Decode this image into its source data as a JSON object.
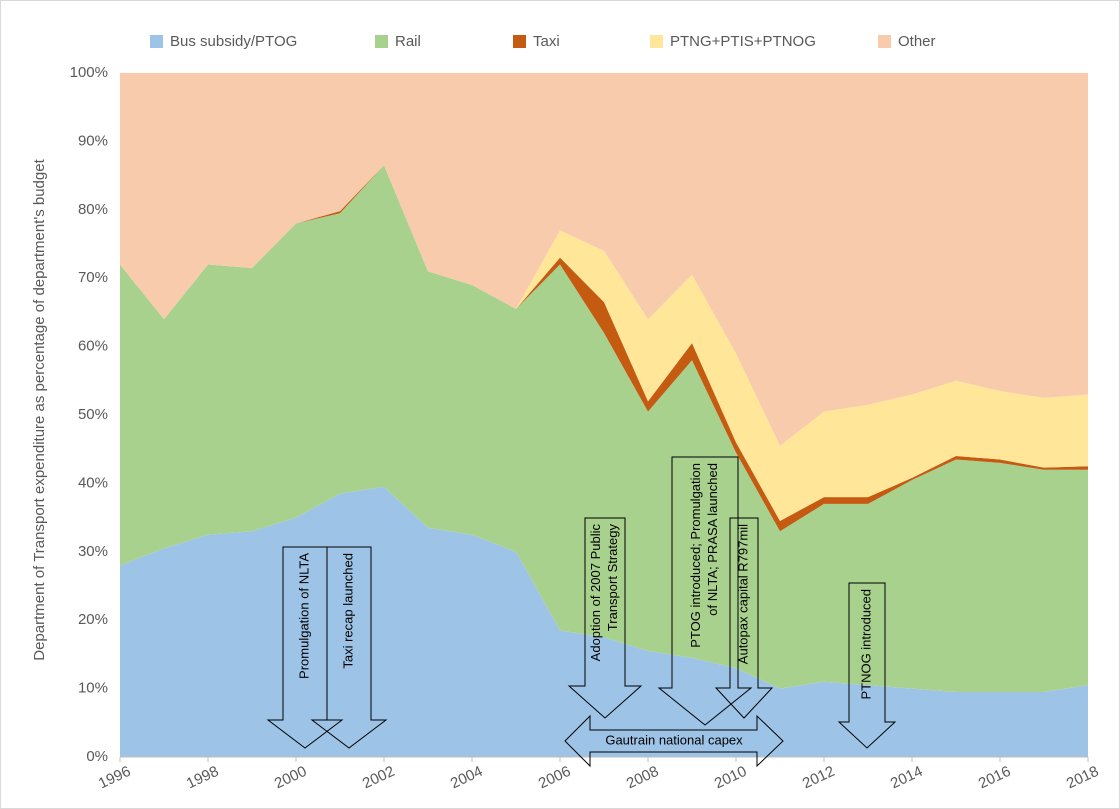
{
  "chart_data": {
    "type": "stacked_area_percent",
    "ylabel": "Department of Transport expenditure as percentage of department's budget",
    "x": [
      1996,
      1997,
      1998,
      1999,
      2000,
      2001,
      2002,
      2003,
      2004,
      2005,
      2006,
      2007,
      2008,
      2009,
      2010,
      2011,
      2012,
      2013,
      2014,
      2015,
      2016,
      2017,
      2018
    ],
    "xlim": [
      1996,
      2018
    ],
    "xticks": [
      1996,
      1998,
      2000,
      2002,
      2004,
      2006,
      2008,
      2010,
      2012,
      2014,
      2016,
      2018
    ],
    "ylim": [
      0,
      100
    ],
    "yticks": [
      {
        "value": 0,
        "label": "0%"
      },
      {
        "value": 10,
        "label": "10%"
      },
      {
        "value": 20,
        "label": "20%"
      },
      {
        "value": 30,
        "label": "30%"
      },
      {
        "value": 40,
        "label": "40%"
      },
      {
        "value": 50,
        "label": "50%"
      },
      {
        "value": 60,
        "label": "60%"
      },
      {
        "value": 70,
        "label": "70%"
      },
      {
        "value": 80,
        "label": "80%"
      },
      {
        "value": 90,
        "label": "90%"
      },
      {
        "value": 100,
        "label": "100%"
      }
    ],
    "series": [
      {
        "name": "Bus subsidy/PTOG",
        "color": "#9dc3e6",
        "values": [
          28,
          30.5,
          32.5,
          33,
          35,
          38.5,
          39.5,
          33.5,
          32.5,
          30,
          18.5,
          17.5,
          15.5,
          14.5,
          13,
          10,
          11,
          10.5,
          10,
          9.5,
          9.5,
          9.5,
          10.5
        ]
      },
      {
        "name": "Rail",
        "color": "#a9d18e",
        "values": [
          44,
          33.5,
          39.5,
          38.5,
          43,
          41,
          47,
          37.5,
          36.5,
          35.5,
          53.5,
          44.5,
          35,
          43.5,
          31.5,
          23,
          26,
          26.5,
          30.5,
          34,
          33.5,
          32.5,
          31.5
        ]
      },
      {
        "name": "Taxi",
        "color": "#c55a11",
        "values": [
          0,
          0,
          0,
          0,
          0,
          0.3,
          0,
          0,
          0,
          0,
          1,
          4.5,
          1.5,
          2.5,
          1.5,
          1.5,
          1,
          1,
          0.3,
          0.5,
          0.5,
          0.3,
          0.5
        ]
      },
      {
        "name": "PTNG+PTIS+PTNOG",
        "color": "#ffe699",
        "values": [
          0,
          0,
          0,
          0,
          0,
          0,
          0,
          0,
          0,
          0,
          4,
          7.5,
          12,
          10,
          13,
          11,
          12.5,
          13.5,
          12.2,
          11,
          10,
          10.2,
          10.5
        ]
      },
      {
        "name": "Other",
        "color": "#f8cbad",
        "values": [
          28,
          36,
          28,
          28.5,
          22,
          20.2,
          13.5,
          29,
          31,
          34.5,
          23,
          26,
          36,
          29.5,
          41,
          54.5,
          49.5,
          48.5,
          47,
          45,
          46.5,
          47.5,
          47
        ]
      }
    ],
    "legend": "top",
    "annotations": [
      {
        "lines": [
          "Promulgation of NLTA"
        ]
      },
      {
        "lines": [
          "Taxi recap launched"
        ]
      },
      {
        "lines": [
          "Adoption of 2007 Public",
          "Transport Strategy"
        ]
      },
      {
        "lines": [
          "PTOG introduced; Promulgation",
          "of NLTA; PRASA launched"
        ]
      },
      {
        "lines": [
          "Autopax capital R797mil"
        ]
      },
      {
        "lines": [
          "PTNOG introduced"
        ]
      },
      {
        "lines": [
          "Gautrain national capex"
        ]
      }
    ]
  }
}
